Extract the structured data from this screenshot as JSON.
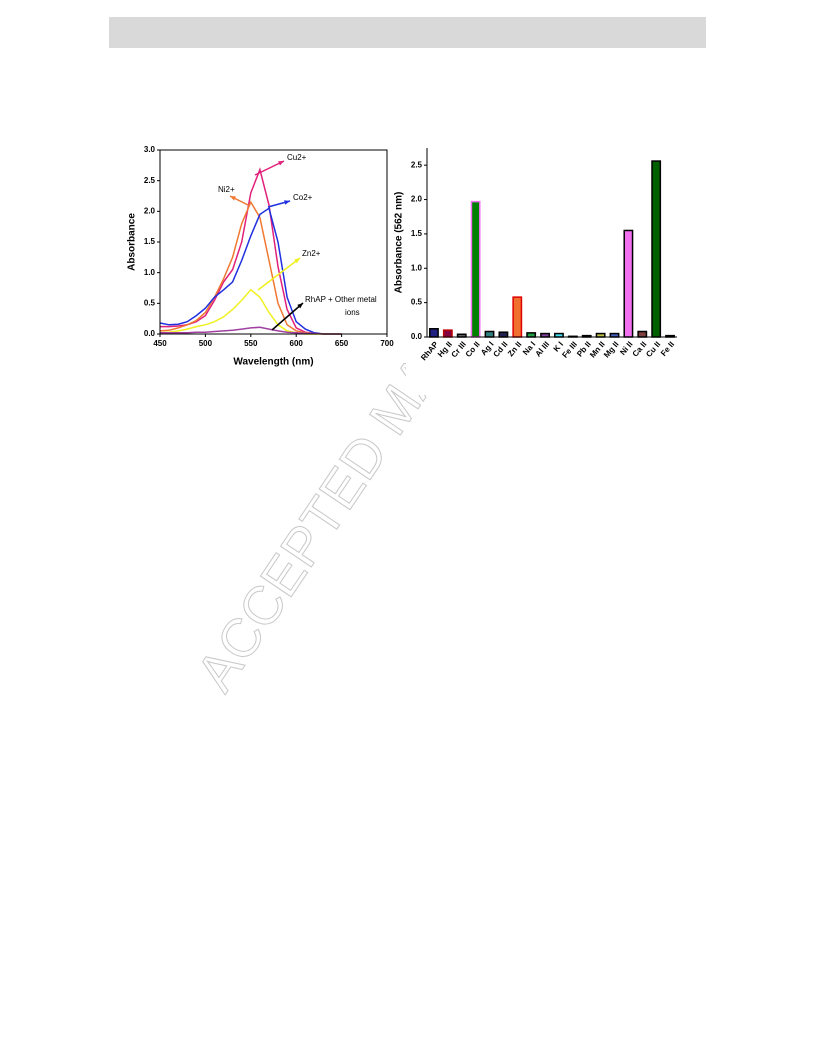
{
  "watermark": "ACCEPTED MAN",
  "chart_data": [
    {
      "type": "line",
      "xlabel": "Wavelength (nm)",
      "ylabel": "Absorbance",
      "x": [
        450,
        460,
        470,
        480,
        490,
        500,
        510,
        520,
        530,
        540,
        550,
        560,
        570,
        580,
        590,
        600,
        610,
        620,
        630,
        640,
        650
      ],
      "xlim": [
        450,
        700
      ],
      "xticks": [
        450,
        500,
        550,
        600,
        650,
        700
      ],
      "ylim": [
        0,
        3
      ],
      "yticks": [
        {
          "value": 0,
          "label": "0.0"
        },
        {
          "value": 0.5,
          "label": "0.5"
        },
        {
          "value": 1,
          "label": "1.0"
        },
        {
          "value": 1.5,
          "label": "1.5"
        },
        {
          "value": 2,
          "label": "2.0"
        },
        {
          "value": 2.5,
          "label": "2.5"
        },
        {
          "value": 3,
          "label": "3.0"
        }
      ],
      "series": [
        {
          "name": "Cu2+",
          "color": "#e0207a",
          "values": [
            0.12,
            0.12,
            0.13,
            0.15,
            0.2,
            0.3,
            0.55,
            0.85,
            1.05,
            1.5,
            2.3,
            2.68,
            2.1,
            1.1,
            0.4,
            0.1,
            0.03,
            0.01,
            0,
            0,
            0
          ]
        },
        {
          "name": "Ni2+",
          "color": "#f07830",
          "values": [
            0.05,
            0.06,
            0.1,
            0.15,
            0.22,
            0.35,
            0.6,
            0.9,
            1.25,
            1.8,
            2.15,
            1.9,
            1.2,
            0.5,
            0.15,
            0.05,
            0.02,
            0.01,
            0,
            0,
            0
          ]
        },
        {
          "name": "Co2+",
          "color": "#2030e0",
          "values": [
            0.18,
            0.15,
            0.16,
            0.2,
            0.3,
            0.42,
            0.6,
            0.72,
            0.85,
            1.2,
            1.6,
            1.95,
            2.05,
            1.5,
            0.6,
            0.2,
            0.08,
            0.02,
            0,
            0,
            0
          ]
        },
        {
          "name": "Zn2+",
          "color": "#f0f020",
          "values": [
            0.02,
            0.03,
            0.05,
            0.08,
            0.12,
            0.15,
            0.2,
            0.28,
            0.4,
            0.55,
            0.72,
            0.6,
            0.35,
            0.15,
            0.05,
            0.02,
            0,
            0,
            0,
            0,
            0
          ]
        },
        {
          "color": "#a040a0",
          "values": [
            0.02,
            0.02,
            0.02,
            0.02,
            0.03,
            0.03,
            0.04,
            0.05,
            0.06,
            0.08,
            0.1,
            0.11,
            0.08,
            0.05,
            0.03,
            0.02,
            0.01,
            0.01,
            0,
            0,
            0
          ]
        }
      ],
      "annotation": [
        "RhAP + Other metal",
        "ions"
      ]
    },
    {
      "type": "bar",
      "ylabel": "Absorbance (562 nm)",
      "categories": [
        "RhAP",
        "Hg II",
        "Cr III",
        "Co II",
        "Ag I",
        "Cd II",
        "Zn II",
        "Na I",
        "Al III",
        "K I",
        "Fe III",
        "Pb II",
        "Mn II",
        "Mg II",
        "Ni II",
        "Ca II",
        "Cu II",
        "Fe II"
      ],
      "values": [
        0.12,
        0.1,
        0.04,
        1.97,
        0.08,
        0.07,
        0.58,
        0.06,
        0.05,
        0.05,
        0.01,
        0.02,
        0.05,
        0.05,
        1.55,
        0.08,
        2.56,
        0.02
      ],
      "colors": [
        "#202080",
        "#800040",
        "#606060",
        "#008000",
        "#308080",
        "#202050",
        "#f07030",
        "#20a040",
        "#8040a0",
        "#40e0f0",
        "#c0c0c0",
        "#c0c0ff",
        "#c0c040",
        "#4060c0",
        "#f070f0",
        "#804040",
        "#006000",
        "#008080"
      ],
      "edge_colors": [
        "#000",
        "#c00000",
        "#000",
        "#f070f0",
        "#000",
        "#000",
        "#e00000",
        "#000",
        "#000",
        "#000",
        "#000",
        "#000",
        "#000",
        "#000",
        "#000",
        "#000",
        "#000",
        "#000"
      ],
      "ylim": [
        0,
        2.75
      ],
      "yticks": [
        {
          "value": 0,
          "label": "0.0"
        },
        {
          "value": 0.5,
          "label": "0.5"
        },
        {
          "value": 1,
          "label": "1.0"
        },
        {
          "value": 1.5,
          "label": "1.5"
        },
        {
          "value": 2,
          "label": "2.0"
        },
        {
          "value": 2.5,
          "label": "2.5"
        }
      ]
    }
  ]
}
